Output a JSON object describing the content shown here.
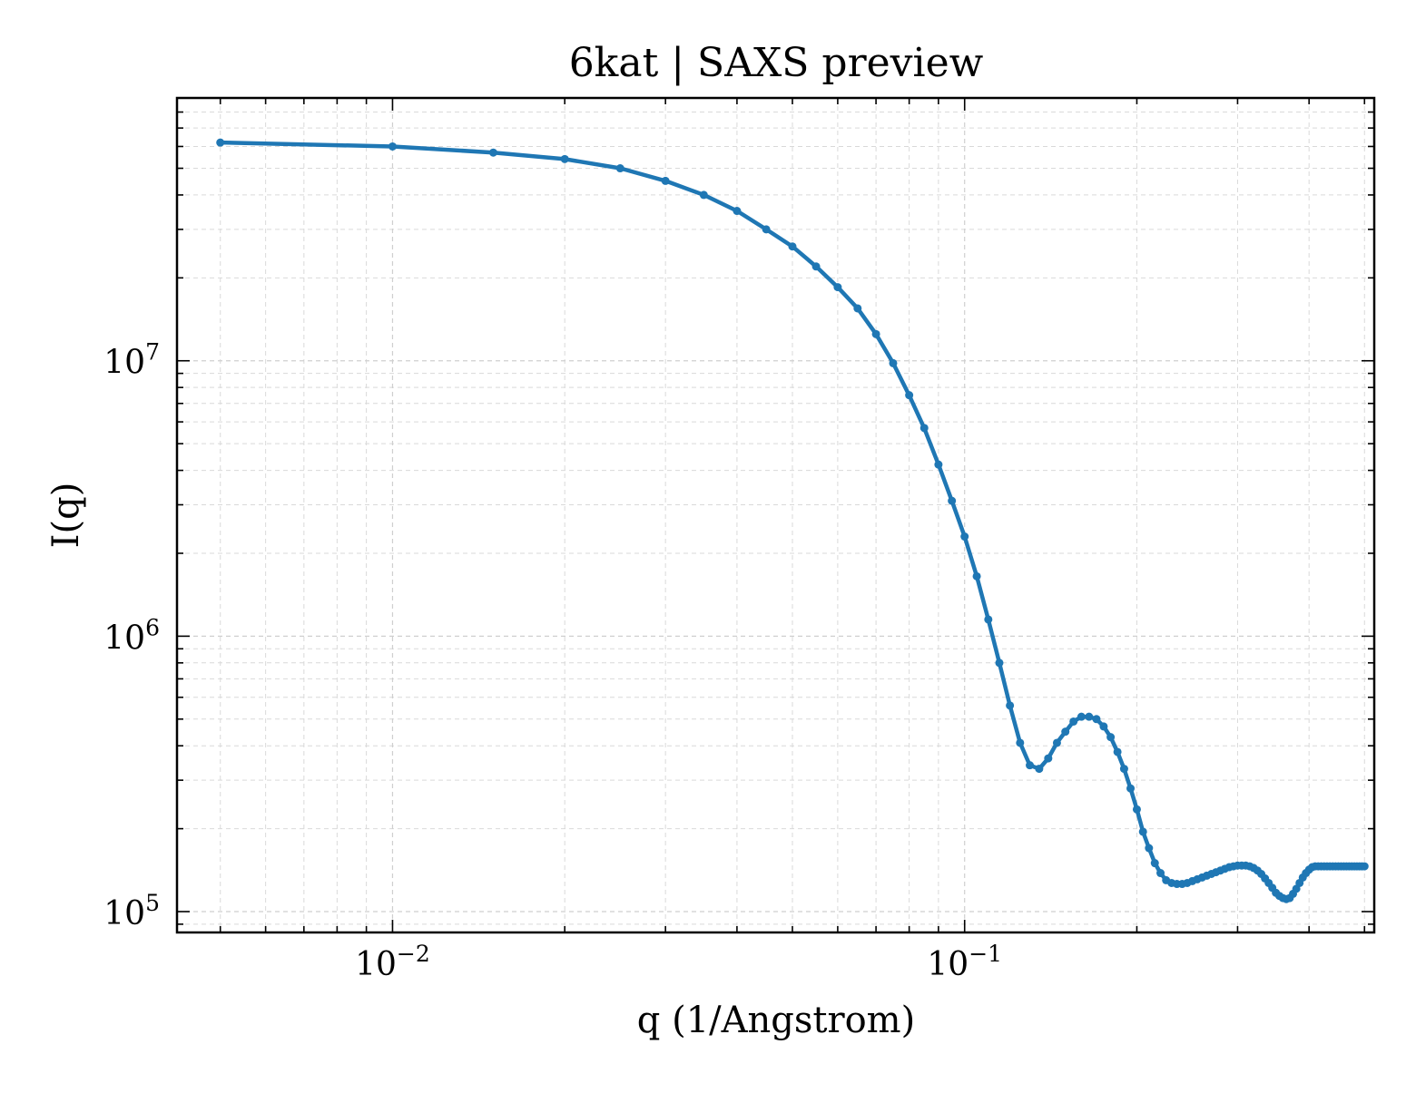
{
  "chart_data": {
    "type": "line",
    "title": "6kat | SAXS preview",
    "xlabel": "q (1/Angstrom)",
    "ylabel": "I(q)",
    "x_scale": "log",
    "y_scale": "log",
    "xlim": [
      0.0042,
      0.52
    ],
    "ylim": [
      84000,
      90000000
    ],
    "grid": true,
    "legend": "none",
    "x_ticks": [
      {
        "value": 0.01,
        "base": "10",
        "exp": "−2"
      },
      {
        "value": 0.1,
        "base": "10",
        "exp": "−1"
      }
    ],
    "y_ticks": [
      {
        "value": 100000,
        "base": "10",
        "exp": "5"
      },
      {
        "value": 1000000,
        "base": "10",
        "exp": "6"
      },
      {
        "value": 10000000,
        "base": "10",
        "exp": "7"
      }
    ],
    "series": [
      {
        "color": "#1f77b4",
        "x": [
          0.005,
          0.01,
          0.015,
          0.02,
          0.025,
          0.03,
          0.035,
          0.04,
          0.045,
          0.05,
          0.055,
          0.06,
          0.065,
          0.07,
          0.075,
          0.08,
          0.085,
          0.09,
          0.095,
          0.1,
          0.105,
          0.11,
          0.115,
          0.12,
          0.125,
          0.13,
          0.135,
          0.14,
          0.145,
          0.15,
          0.155,
          0.16,
          0.165,
          0.17,
          0.175,
          0.18,
          0.185,
          0.19,
          0.195,
          0.2,
          0.205,
          0.21,
          0.215,
          0.22,
          0.225,
          0.23,
          0.235,
          0.24,
          0.245,
          0.25,
          0.255,
          0.26,
          0.265,
          0.27,
          0.275,
          0.28,
          0.285,
          0.29,
          0.295,
          0.3,
          0.305,
          0.31,
          0.315,
          0.32,
          0.325,
          0.33,
          0.335,
          0.34,
          0.345,
          0.35,
          0.355,
          0.36,
          0.365,
          0.37,
          0.375,
          0.38,
          0.385,
          0.39,
          0.395,
          0.4,
          0.405,
          0.41,
          0.415,
          0.42,
          0.425,
          0.43,
          0.435,
          0.44,
          0.445,
          0.45,
          0.455,
          0.46,
          0.465,
          0.47,
          0.475,
          0.48,
          0.485,
          0.49,
          0.495,
          0.5
        ],
        "y": [
          62000000,
          60000000,
          57000000,
          54000000,
          50000000,
          45000000,
          40000000,
          35000000,
          30000000,
          26000000,
          22000000,
          18500000,
          15500000,
          12500000,
          9800000,
          7500000,
          5700000,
          4200000,
          3100000,
          2300000,
          1650000,
          1150000,
          800000,
          560000,
          410000,
          340000,
          330000,
          360000,
          410000,
          450000,
          490000,
          510000,
          510000,
          500000,
          470000,
          430000,
          380000,
          330000,
          280000,
          235000,
          195000,
          170000,
          150000,
          138000,
          130000,
          127000,
          126000,
          126000,
          127000,
          129000,
          131000,
          133000,
          135000,
          137000,
          139000,
          141000,
          143000,
          145000,
          146000,
          147000,
          147000,
          147000,
          146000,
          144000,
          141000,
          137000,
          132000,
          127000,
          122000,
          117000,
          114000,
          112000,
          111000,
          112000,
          116000,
          121000,
          127000,
          133000,
          138000,
          142000,
          145000,
          146000,
          146000,
          146000,
          146000,
          146000,
          146000,
          146000,
          146000,
          146000,
          146000,
          146000,
          146000,
          146000,
          146000,
          146000,
          146000,
          146000,
          146000,
          146000
        ]
      }
    ]
  }
}
